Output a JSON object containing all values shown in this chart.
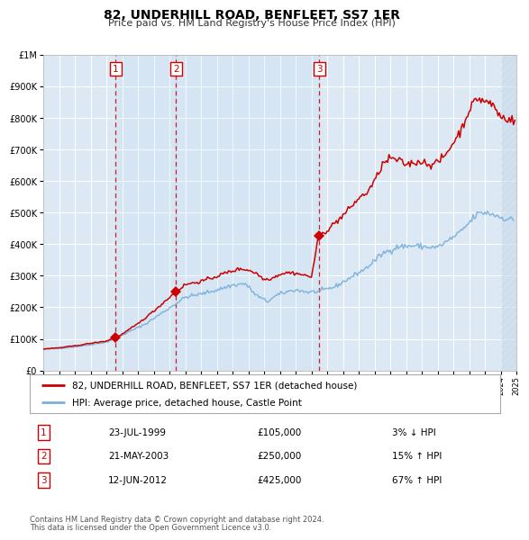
{
  "title": "82, UNDERHILL ROAD, BENFLEET, SS7 1ER",
  "subtitle": "Price paid vs. HM Land Registry's House Price Index (HPI)",
  "hpi_color": "#7ab0d8",
  "price_color": "#cc0000",
  "plot_bg": "#dce9f5",
  "transactions": [
    {
      "num": 1,
      "date": "1999-07-23",
      "price": 105000,
      "pct": "3%",
      "dir": "↓"
    },
    {
      "num": 2,
      "date": "2003-05-21",
      "price": 250000,
      "pct": "15%",
      "dir": "↑"
    },
    {
      "num": 3,
      "date": "2012-06-12",
      "price": 425000,
      "pct": "67%",
      "dir": "↑"
    }
  ],
  "legend_line1": "82, UNDERHILL ROAD, BENFLEET, SS7 1ER (detached house)",
  "legend_line2": "HPI: Average price, detached house, Castle Point",
  "footer1": "Contains HM Land Registry data © Crown copyright and database right 2024.",
  "footer2": "This data is licensed under the Open Government Licence v3.0.",
  "ylim": [
    0,
    1000000
  ],
  "yticks": [
    0,
    100000,
    200000,
    300000,
    400000,
    500000,
    600000,
    700000,
    800000,
    900000,
    1000000
  ],
  "xstart": 1995,
  "xend": 2025,
  "rows": [
    {
      "num": "1",
      "date": "23-JUL-1999",
      "price": "£105,000",
      "pct": "3% ↓ HPI"
    },
    {
      "num": "2",
      "date": "21-MAY-2003",
      "price": "£250,000",
      "pct": "15% ↑ HPI"
    },
    {
      "num": "3",
      "date": "12-JUN-2012",
      "price": "£425,000",
      "pct": "67% ↑ HPI"
    }
  ]
}
